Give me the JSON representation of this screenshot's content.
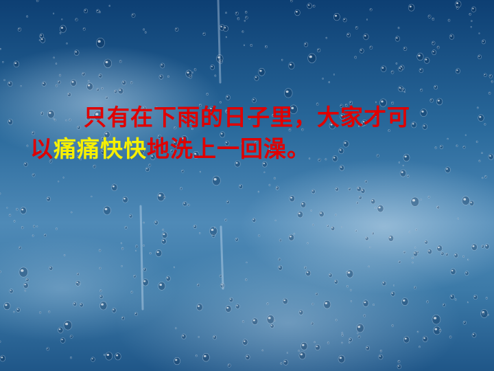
{
  "slide": {
    "line1": "只有在下雨的日子里，大家才可",
    "line2_before": "以",
    "line2_highlight": "痛痛快快",
    "line2_after": "地洗上一回澡。"
  },
  "colors": {
    "text": "#e00000",
    "highlight": "#f7f000",
    "background": "#2a6a9c"
  },
  "background_image": "rain-drops-on-window"
}
